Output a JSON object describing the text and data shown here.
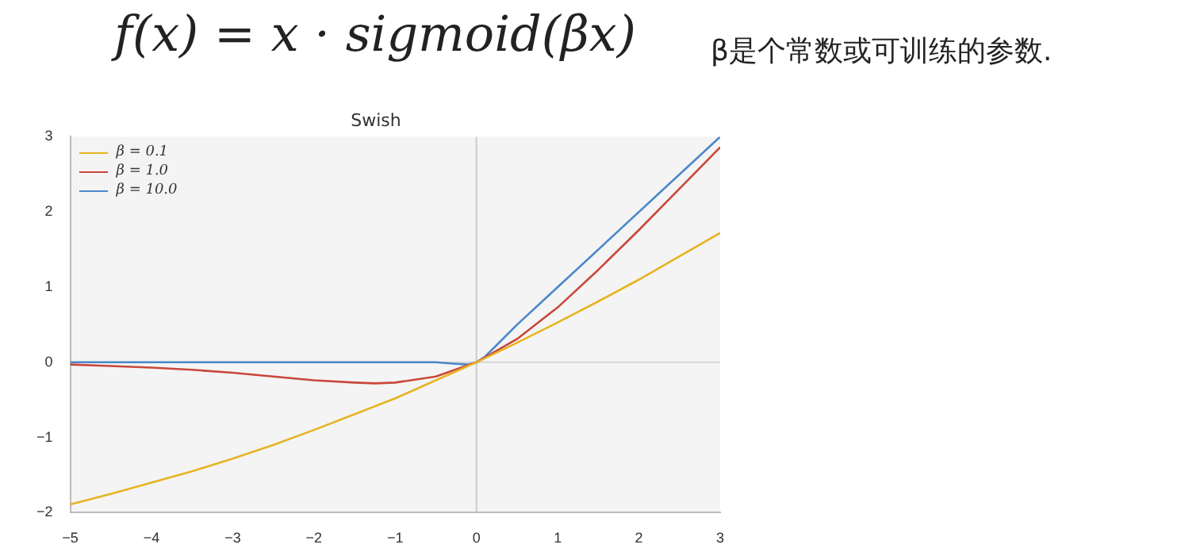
{
  "chart_data": {
    "type": "line",
    "title": "Swish",
    "annotations": [
      "f(x) = x · sigmoid(βx)",
      "β是个常数或可训练的参数."
    ],
    "xlim": [
      -5,
      3
    ],
    "xticks": [
      -5,
      -4,
      -3,
      -2,
      -1,
      0,
      1,
      2,
      3
    ],
    "ylim": [
      -2,
      3
    ],
    "yticks": [
      -2,
      -1,
      0,
      1,
      2,
      3
    ],
    "grid": false,
    "legend": "top left",
    "marker": "none",
    "line_style": "solid",
    "ref_lines": [
      {
        "axis": "x",
        "value": 0,
        "color": "#cccccc"
      },
      {
        "axis": "y",
        "value": 0,
        "color": "#d6d6d6"
      }
    ],
    "series": [
      {
        "name": "β = 0.1",
        "color": "#e6b422",
        "x": [
          -5,
          -4.5,
          -4,
          -3.5,
          -3,
          -2.5,
          -2,
          -1.5,
          -1,
          -0.5,
          0,
          0.5,
          1,
          1.5,
          2,
          2.5,
          3
        ],
        "values": [
          -1.89,
          -1.75,
          -1.6,
          -1.45,
          -1.28,
          -1.1,
          -0.9,
          -0.69,
          -0.48,
          -0.24,
          0,
          0.26,
          0.53,
          0.81,
          1.1,
          1.41,
          1.72
        ]
      },
      {
        "name": "β = 1.0",
        "color": "#c9473a",
        "x": [
          -5,
          -4.5,
          -4,
          -3.5,
          -3,
          -2.5,
          -2,
          -1.5,
          -1.25,
          -1,
          -0.5,
          0,
          0.5,
          1,
          1.5,
          2,
          2.5,
          3
        ],
        "values": [
          -0.03,
          -0.05,
          -0.07,
          -0.1,
          -0.14,
          -0.19,
          -0.24,
          -0.27,
          -0.28,
          -0.27,
          -0.19,
          0,
          0.31,
          0.73,
          1.23,
          1.76,
          2.31,
          2.86
        ]
      },
      {
        "name": "β = 10.0",
        "color": "#4a87c9",
        "x": [
          -5,
          -1,
          -0.5,
          -0.25,
          -0.1,
          0,
          0.1,
          0.25,
          0.5,
          1,
          3
        ],
        "values": [
          0,
          0,
          0,
          -0.02,
          -0.03,
          0,
          0.07,
          0.23,
          0.5,
          1,
          3
        ]
      }
    ]
  }
}
